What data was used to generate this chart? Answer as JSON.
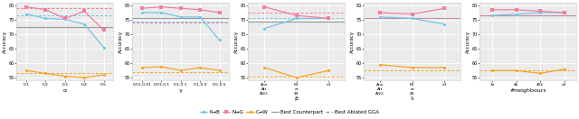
{
  "subplots": [
    {
      "xlabel": "α",
      "xtick_labels": [
        "0.1",
        "0.2",
        "0.3",
        "0.4",
        "0.5"
      ],
      "KB": [
        77.0,
        75.5,
        75.2,
        73.5,
        65.5
      ],
      "NG": [
        79.5,
        78.5,
        75.5,
        78.0,
        71.5
      ],
      "CW": [
        57.5,
        56.5,
        55.5,
        55.0,
        56.0
      ],
      "best_counterpart": 72.5,
      "best_ablated_KB": 76.5,
      "best_ablated_NG": 79.0,
      "best_ablated_CW": 56.5,
      "ylim": [
        54,
        81
      ],
      "yticks": [
        55,
        60,
        65,
        70,
        75,
        80
      ]
    },
    {
      "xlabel": "γ",
      "xtick_labels": [
        "0.01-0.01",
        "0.01-0.1",
        "0.1-0.1",
        "0.1-0.5",
        "0.5-0.5"
      ],
      "KB": [
        77.5,
        77.5,
        76.0,
        76.0,
        68.0
      ],
      "NG": [
        79.0,
        79.5,
        79.0,
        78.5,
        77.5
      ],
      "CW": [
        58.5,
        58.8,
        57.5,
        58.5,
        57.5
      ],
      "best_counterpart": 75.5,
      "best_ablated_KB": 74.5,
      "best_ablated_NG": 74.0,
      "best_ablated_CW": 57.0,
      "ylim": [
        54,
        81
      ],
      "yticks": [
        55,
        60,
        65,
        70,
        75,
        80
      ]
    },
    {
      "xlabel": "β",
      "xtick_labels": [
        "Ann\nAtt\nAGG",
        "60\nor\n40",
        "e1"
      ],
      "KB": [
        72.0,
        75.5,
        75.5
      ],
      "NG": [
        79.5,
        76.5,
        75.5
      ],
      "CW": [
        58.5,
        55.0,
        57.5
      ],
      "best_counterpart": 74.5,
      "best_ablated_KB": 75.5,
      "best_ablated_NG": 77.5,
      "best_ablated_CW": 55.5,
      "ylim": [
        54,
        81
      ],
      "yticks": [
        55,
        60,
        65,
        70,
        75,
        80
      ]
    },
    {
      "xlabel": "λ",
      "xtick_labels": [
        "Ann\nAtt\nAGG",
        "60\nor\n40",
        "e1"
      ],
      "KB": [
        76.0,
        75.5,
        73.5
      ],
      "NG": [
        77.5,
        77.0,
        79.0
      ],
      "CW": [
        59.5,
        58.5,
        58.5
      ],
      "best_counterpart": 75.5,
      "best_ablated_KB": 75.5,
      "best_ablated_NG": 75.5,
      "best_ablated_CW": 57.5,
      "ylim": [
        54,
        81
      ],
      "yticks": [
        55,
        60,
        65,
        70,
        75,
        80
      ]
    },
    {
      "xlabel": "#neighbours",
      "xtick_labels": [
        "1n",
        "4k",
        "40k",
        "e2"
      ],
      "KB": [
        76.5,
        77.0,
        77.5,
        77.5
      ],
      "NG": [
        78.5,
        78.5,
        78.0,
        77.5
      ],
      "CW": [
        57.5,
        57.5,
        56.5,
        58.0
      ],
      "best_counterpart": 76.5,
      "best_ablated_KB": 76.5,
      "best_ablated_NG": 76.5,
      "best_ablated_CW": 57.5,
      "ylim": [
        54,
        81
      ],
      "yticks": [
        55,
        60,
        65,
        70,
        75,
        80
      ]
    }
  ],
  "colors": {
    "KB": "#72c7e7",
    "NG": "#f07fa0",
    "CW": "#f5a623",
    "best_counterpart": "#999999",
    "best_ablated_KB": "#72c7e7",
    "best_ablated_NG": "#f07fa0",
    "best_ablated_CW": "#f5a623"
  },
  "legend": {
    "KB_label": "K→B",
    "NG_label": "N→G",
    "CW_label": "C→W",
    "counterpart_label": "Best Counterpart",
    "ablated_label": "Best Ablated GGA"
  },
  "fig_width": 6.4,
  "fig_height": 1.32,
  "dpi": 100
}
